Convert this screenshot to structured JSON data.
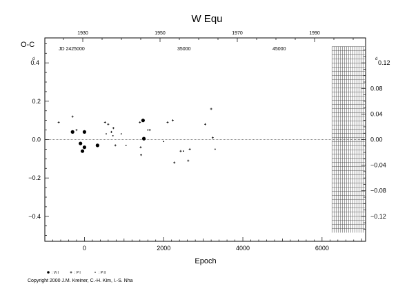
{
  "chart_data": {
    "type": "scatter",
    "title": "W Equ",
    "ylabel": "O-C",
    "xlabel": "Epoch",
    "xlim": [
      -1000,
      7100
    ],
    "ylim": [
      -0.53,
      0.53
    ],
    "x_ticks": [
      0,
      2000,
      4000,
      6000
    ],
    "x_tick_labels": [
      "0",
      "2000",
      "4000",
      "6000"
    ],
    "y_ticks": [
      -0.4,
      -0.2,
      0.0,
      0.2,
      0.4
    ],
    "y_tick_labels": [
      "−0.4",
      "−0.2",
      "0.0",
      "0.2",
      "0.4"
    ],
    "y_top_tick_label": "0.4",
    "y_top_superscript": "d",
    "top_axis_ticks": [
      1930,
      1950,
      1970,
      1990
    ],
    "top_axis_labels": [
      "1930",
      "1950",
      "1970",
      "1990"
    ],
    "jd_labels": [
      "JD 2425000",
      "35000",
      "45000"
    ],
    "right_axis_ticks": [
      -0.12,
      -0.08,
      -0.04,
      0.0,
      0.04,
      0.08,
      0.12
    ],
    "right_axis_labels": [
      "−0.12",
      "−0.08",
      "−0.04",
      "0.00",
      "0.04",
      "0.08",
      "0.12"
    ],
    "right_top_tick_label": "0.12",
    "right_top_superscript": "d",
    "prediction_band": {
      "x_start": 6250,
      "x_end": 7100,
      "y_min": -0.485,
      "y_max": 0.485
    },
    "series": [
      {
        "name": ": Vi I",
        "marker": "filled-circle",
        "points": [
          [
            -300,
            0.04
          ],
          [
            -100,
            -0.02
          ],
          [
            -50,
            -0.06
          ],
          [
            0,
            -0.04
          ],
          [
            0,
            0.04
          ],
          [
            330,
            -0.03
          ],
          [
            1480,
            0.1
          ],
          [
            1500,
            0.005
          ]
        ]
      },
      {
        "name": ": P I",
        "marker": "plus",
        "points": [
          [
            -650,
            0.09
          ],
          [
            -300,
            0.12
          ],
          [
            -200,
            0.05
          ],
          [
            520,
            0.09
          ],
          [
            600,
            0.08
          ],
          [
            680,
            0.04
          ],
          [
            730,
            0.06
          ],
          [
            780,
            -0.03
          ],
          [
            1400,
            0.09
          ],
          [
            1420,
            -0.04
          ],
          [
            1430,
            -0.08
          ],
          [
            1650,
            0.05
          ],
          [
            2100,
            0.09
          ],
          [
            2230,
            0.1
          ],
          [
            2270,
            -0.12
          ],
          [
            2430,
            -0.06
          ],
          [
            2620,
            -0.11
          ],
          [
            2660,
            -0.05
          ],
          [
            3050,
            0.08
          ],
          [
            3200,
            0.16
          ],
          [
            3240,
            0.01
          ]
        ]
      },
      {
        "name": ": P II",
        "marker": "dot",
        "points": [
          [
            550,
            0.03
          ],
          [
            720,
            0.02
          ],
          [
            930,
            0.03
          ],
          [
            1050,
            -0.03
          ],
          [
            1600,
            0.05
          ],
          [
            2000,
            -0.01
          ],
          [
            2500,
            -0.06
          ],
          [
            3300,
            -0.05
          ]
        ]
      }
    ]
  },
  "copyright": "Copyright 2000 J.M. Kreiner, C.-H. Kim, I.-S. Nha"
}
